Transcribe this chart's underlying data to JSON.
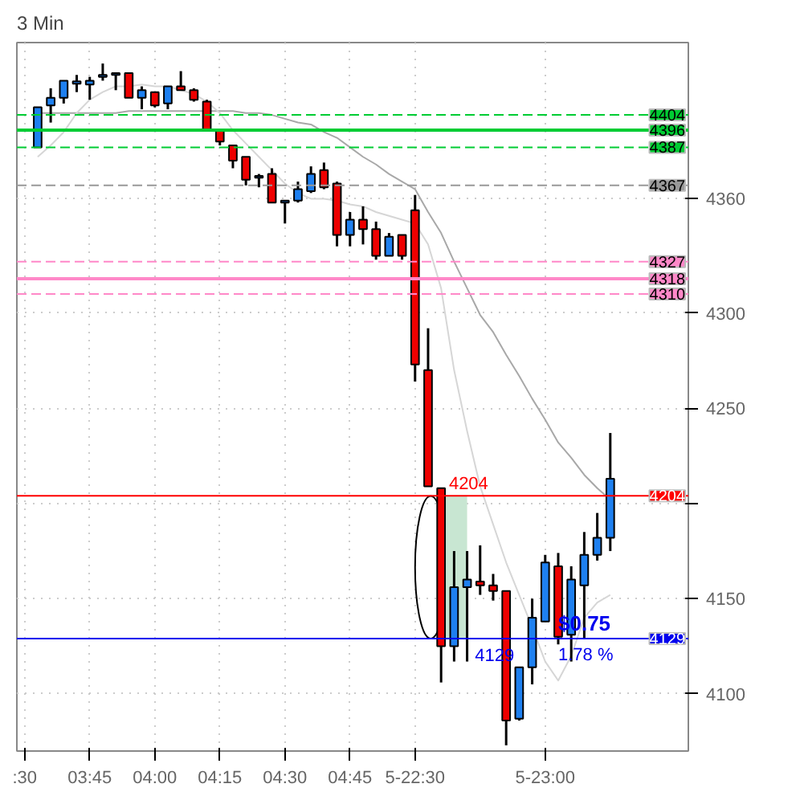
{
  "chart_data": {
    "type": "candlestick",
    "title": "3 Min",
    "categories": [
      ":30",
      null,
      null,
      null,
      null,
      "03:45",
      null,
      null,
      null,
      null,
      "04:00",
      null,
      null,
      null,
      null,
      "04:15",
      null,
      null,
      null,
      null,
      "04:30",
      null,
      null,
      null,
      null,
      "04:45",
      null,
      null,
      null,
      null,
      "5-22:30",
      null,
      null,
      null,
      null,
      null,
      null,
      null,
      null,
      null,
      "5-23:00",
      null,
      null,
      null,
      null,
      null
    ],
    "ohlc": [
      null,
      [
        4387,
        4408,
        4387,
        4408
      ],
      [
        4409,
        4418,
        4400,
        4413
      ],
      [
        4413,
        4422,
        4410,
        4422
      ],
      [
        4421,
        4425,
        4416,
        4421
      ],
      [
        4420,
        4424,
        4412,
        4422
      ],
      [
        4424,
        4431,
        4422,
        4425
      ],
      [
        4425,
        4426,
        4417,
        4426
      ],
      [
        4426,
        4426,
        4413,
        4413
      ],
      [
        4413,
        4419,
        4407,
        4417
      ],
      [
        4416,
        4416,
        4408,
        4409
      ],
      [
        4410,
        4419,
        4407,
        4419
      ],
      [
        4419,
        4427,
        4417,
        4417
      ],
      [
        4417,
        4418,
        4411,
        4412
      ],
      [
        4411,
        4412,
        4396,
        4396
      ],
      [
        4396,
        4396,
        4388,
        4390
      ],
      [
        4388,
        4388,
        4376,
        4380
      ],
      [
        4382,
        4382,
        4367,
        4370
      ],
      [
        4371,
        4373,
        4366,
        4372
      ],
      [
        4373,
        4376,
        4358,
        4358
      ],
      [
        4358,
        4359,
        4347,
        4359
      ],
      [
        4359,
        4369,
        4358,
        4365
      ],
      [
        4364,
        4377,
        4363,
        4373
      ],
      [
        4375,
        4379,
        4365,
        4366
      ],
      [
        4368,
        4369,
        4335,
        4341
      ],
      [
        4341,
        4353,
        4335,
        4349
      ],
      [
        4349,
        4356,
        4336,
        4344
      ],
      [
        4344,
        4348,
        4328,
        4330
      ],
      [
        4330,
        4342,
        4330,
        4340
      ],
      [
        4341,
        4341,
        4328,
        4330
      ],
      [
        4354,
        4362,
        4264,
        4273
      ],
      [
        4270,
        4292,
        4209,
        4209
      ],
      [
        4208,
        4208,
        4106,
        4125
      ],
      [
        4125,
        4175,
        4117,
        4156
      ],
      [
        4156,
        4175,
        4117,
        4160
      ],
      [
        4159,
        4178,
        4152,
        4157
      ],
      [
        4157,
        4163,
        4149,
        4154
      ],
      [
        4154,
        4154,
        4073,
        4086
      ],
      [
        4087,
        4114,
        4086,
        4114
      ],
      [
        4114,
        4150,
        4105,
        4140
      ],
      [
        4138,
        4173,
        4138,
        4169
      ],
      [
        4167,
        4174,
        4126,
        4130
      ],
      [
        4131,
        4167,
        4117,
        4160
      ],
      [
        4157,
        4185,
        4129,
        4173
      ],
      [
        4173,
        4195,
        4170,
        4182
      ],
      [
        4182,
        4237,
        4175,
        4213
      ]
    ],
    "series": [
      {
        "type": "bar",
        "color": "#c8e6d2",
        "values": [
          null,
          null,
          null,
          null,
          null,
          null,
          null,
          null,
          null,
          null,
          null,
          null,
          null,
          null,
          null,
          null,
          null,
          null,
          null,
          null,
          null,
          null,
          null,
          null,
          null,
          null,
          null,
          null,
          null,
          null,
          null,
          null,
          null,
          75,
          null,
          null,
          null,
          null,
          null,
          null,
          null,
          null,
          null,
          null,
          null,
          null
        ],
        "base": [
          null,
          null,
          null,
          null,
          null,
          null,
          null,
          null,
          null,
          null,
          null,
          null,
          null,
          null,
          null,
          null,
          null,
          null,
          null,
          null,
          null,
          null,
          null,
          null,
          null,
          null,
          null,
          null,
          null,
          null,
          null,
          null,
          null,
          4129,
          null,
          null,
          null,
          null,
          null,
          null,
          null,
          null,
          null,
          null,
          null,
          null
        ]
      },
      {
        "type": "line",
        "color": "#a8a8a8",
        "values": [
          null,
          4405,
          4405,
          4405,
          4405,
          4405,
          4405,
          4405,
          4406,
          4406,
          4406,
          4406,
          4406,
          4406,
          4406,
          4406,
          4406,
          4405,
          4405,
          4404,
          4402,
          4400,
          4399,
          4395,
          4392,
          4387,
          4382,
          4378,
          4373,
          4369,
          4365,
          4353,
          4342,
          4327,
          4313,
          4299,
          4290,
          4278,
          4267,
          4255,
          4244,
          4232,
          4224,
          4215,
          4208,
          4202
        ]
      },
      {
        "type": "line",
        "color": "#d6d6d6",
        "values": [
          null,
          4382,
          4388,
          4395,
          4405,
          4412,
          4416,
          4419,
          4419,
          4420,
          4419,
          4419,
          4417,
          4415,
          4411,
          4405,
          4396,
          4389,
          4382,
          4375,
          4368,
          4363,
          4360,
          4360,
          4359,
          4357,
          4356,
          4353,
          4351,
          4349,
          4347,
          4336,
          4313,
          4270,
          4238,
          4209,
          4189,
          4169,
          4152,
          4135,
          4117,
          4107,
          4120,
          4140,
          4148,
          4152
        ]
      }
    ],
    "ylim": [
      4070,
      4442
    ],
    "yticks": [
      4100,
      4150,
      {
        "value": 4200,
        "label": null
      },
      4250,
      4300,
      4360
    ],
    "grid": true,
    "ref_lines": [
      {
        "axis": "y",
        "value": 4404,
        "label": "4404",
        "color": "#00cc33",
        "line_style": "dashed"
      },
      {
        "axis": "y",
        "value": 4396,
        "label": "4396",
        "color": "#00cc33",
        "line_style": "solid"
      },
      {
        "axis": "y",
        "value": 4387,
        "label": "4387",
        "color": "#00cc33",
        "line_style": "dashed"
      },
      {
        "axis": "y",
        "value": 4367,
        "label": "4367",
        "color": "#999999",
        "line_style": "dashed"
      },
      {
        "axis": "y",
        "value": 4327,
        "label": "4327",
        "color": "#ff88c8",
        "line_style": "dashed"
      },
      {
        "axis": "y",
        "value": 4318,
        "label": "4318",
        "color": "#ff88c8",
        "line_style": "solid"
      },
      {
        "axis": "y",
        "value": 4310,
        "label": "4310",
        "color": "#ff88c8",
        "line_style": "dashed"
      },
      {
        "axis": "y",
        "value": 4204,
        "label": "4204",
        "color": "#ff0000",
        "line_style": "solid"
      },
      {
        "axis": "y",
        "value": 4129,
        "label": "4129",
        "color": "#0000ee",
        "line_style": "solid"
      }
    ],
    "annotations": [
      "4204",
      "4129",
      "$0.75",
      "1.78 %"
    ]
  }
}
